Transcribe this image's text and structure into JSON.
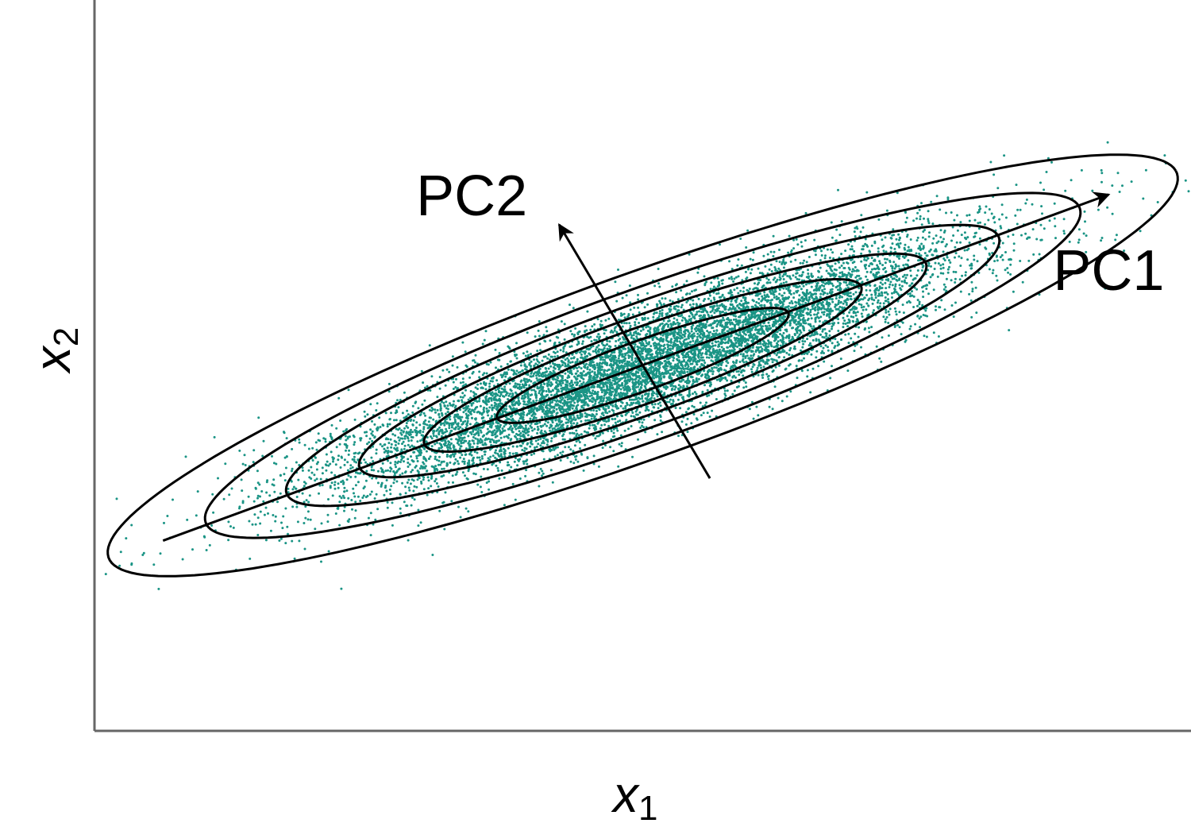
{
  "chart_data": {
    "type": "scatter",
    "title": "",
    "xlabel": {
      "main": "x",
      "sub": "1"
    },
    "ylabel": {
      "main": "x",
      "sub": "2"
    },
    "grid": false,
    "ticks": false,
    "xlim": [
      -4,
      4
    ],
    "ylim": [
      -3.4,
      3.4
    ],
    "distribution": {
      "mean": [
        0,
        0
      ],
      "principal_directions_deg": {
        "pc1": 25,
        "pc2": 115
      },
      "sd_pc1": 1.3,
      "sd_pc2": 0.25,
      "n_points": 9000,
      "point_color": "#1a9485"
    },
    "contour_levels_mahalanobis": [
      0.9,
      1.35,
      1.75,
      2.2,
      2.7,
      3.3
    ],
    "vectors": [
      {
        "label": "PC1",
        "from": [
          -3.5,
          -1.63
        ],
        "to": [
          3.4,
          1.59
        ]
      },
      {
        "label": "PC2",
        "from": [
          0.49,
          -1.05
        ],
        "to": [
          -0.61,
          1.31
        ]
      }
    ]
  },
  "colors": {
    "points": "#1a9485",
    "lines": "#000000",
    "axes": "#666666",
    "background": "#ffffff"
  }
}
